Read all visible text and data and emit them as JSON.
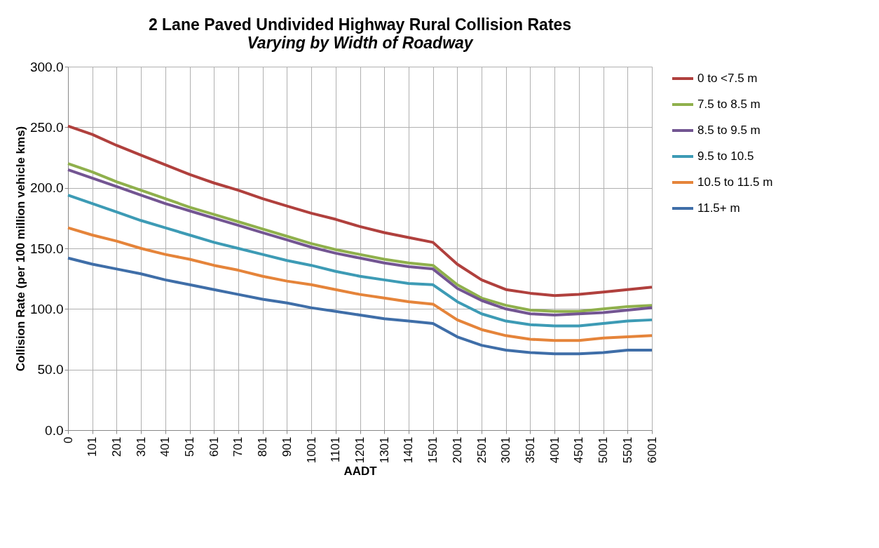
{
  "chart_data": {
    "type": "line",
    "title": "2 Lane Paved Undivided Highway Rural Collision Rates",
    "subtitle": "Varying by Width of Roadway",
    "xlabel": "AADT",
    "ylabel": "Collision Rate (per 100 million vehicle kms)",
    "categories": [
      "0",
      "101",
      "201",
      "301",
      "401",
      "501",
      "601",
      "701",
      "801",
      "901",
      "1001",
      "1101",
      "1201",
      "1301",
      "1401",
      "1501",
      "2001",
      "2501",
      "3001",
      "3501",
      "4001",
      "4501",
      "5001",
      "5501",
      "6001"
    ],
    "series": [
      {
        "name": "0 to <7.5 m",
        "color": "#b0403d",
        "values": [
          251,
          244,
          235,
          227,
          219,
          211,
          204,
          198,
          191,
          185,
          179,
          174,
          168,
          163,
          159,
          155,
          137,
          124,
          116,
          113,
          111,
          112,
          114,
          116,
          118
        ]
      },
      {
        "name": "7.5 to 8.5 m",
        "color": "#8fb04c",
        "values": [
          220,
          213,
          205,
          198,
          191,
          184,
          178,
          172,
          166,
          160,
          154,
          149,
          145,
          141,
          138,
          136,
          120,
          109,
          103,
          99,
          98,
          98,
          100,
          102,
          103
        ]
      },
      {
        "name": "8.5 to 9.5 m",
        "color": "#735592",
        "values": [
          215,
          208,
          201,
          194,
          187,
          181,
          175,
          169,
          163,
          157,
          151,
          146,
          142,
          138,
          135,
          133,
          117,
          107,
          100,
          96,
          95,
          96,
          97,
          99,
          101
        ]
      },
      {
        "name": "9.5 to 10.5",
        "color": "#3d9bb5",
        "values": [
          194,
          187,
          180,
          173,
          167,
          161,
          155,
          150,
          145,
          140,
          136,
          131,
          127,
          124,
          121,
          120,
          106,
          96,
          90,
          87,
          86,
          86,
          88,
          90,
          91
        ]
      },
      {
        "name": "10.5 to 11.5 m",
        "color": "#e5843a",
        "values": [
          167,
          161,
          156,
          150,
          145,
          141,
          136,
          132,
          127,
          123,
          120,
          116,
          112,
          109,
          106,
          104,
          91,
          83,
          78,
          75,
          74,
          74,
          76,
          77,
          78
        ]
      },
      {
        "name": "11.5+ m",
        "color": "#3f6ea8",
        "values": [
          142,
          137,
          133,
          129,
          124,
          120,
          116,
          112,
          108,
          105,
          101,
          98,
          95,
          92,
          90,
          88,
          77,
          70,
          66,
          64,
          63,
          63,
          64,
          66,
          66
        ]
      }
    ],
    "ylim": [
      0,
      300
    ],
    "yticks": [
      {
        "value": 0,
        "label": "0.0"
      },
      {
        "value": 50,
        "label": "50.0"
      },
      {
        "value": 100,
        "label": "100.0"
      },
      {
        "value": 150,
        "label": "150.0"
      },
      {
        "value": 200,
        "label": "200.0"
      },
      {
        "value": 250,
        "label": "250.0"
      },
      {
        "value": 300,
        "label": "300.0"
      }
    ],
    "grid": true,
    "legend": "right"
  }
}
